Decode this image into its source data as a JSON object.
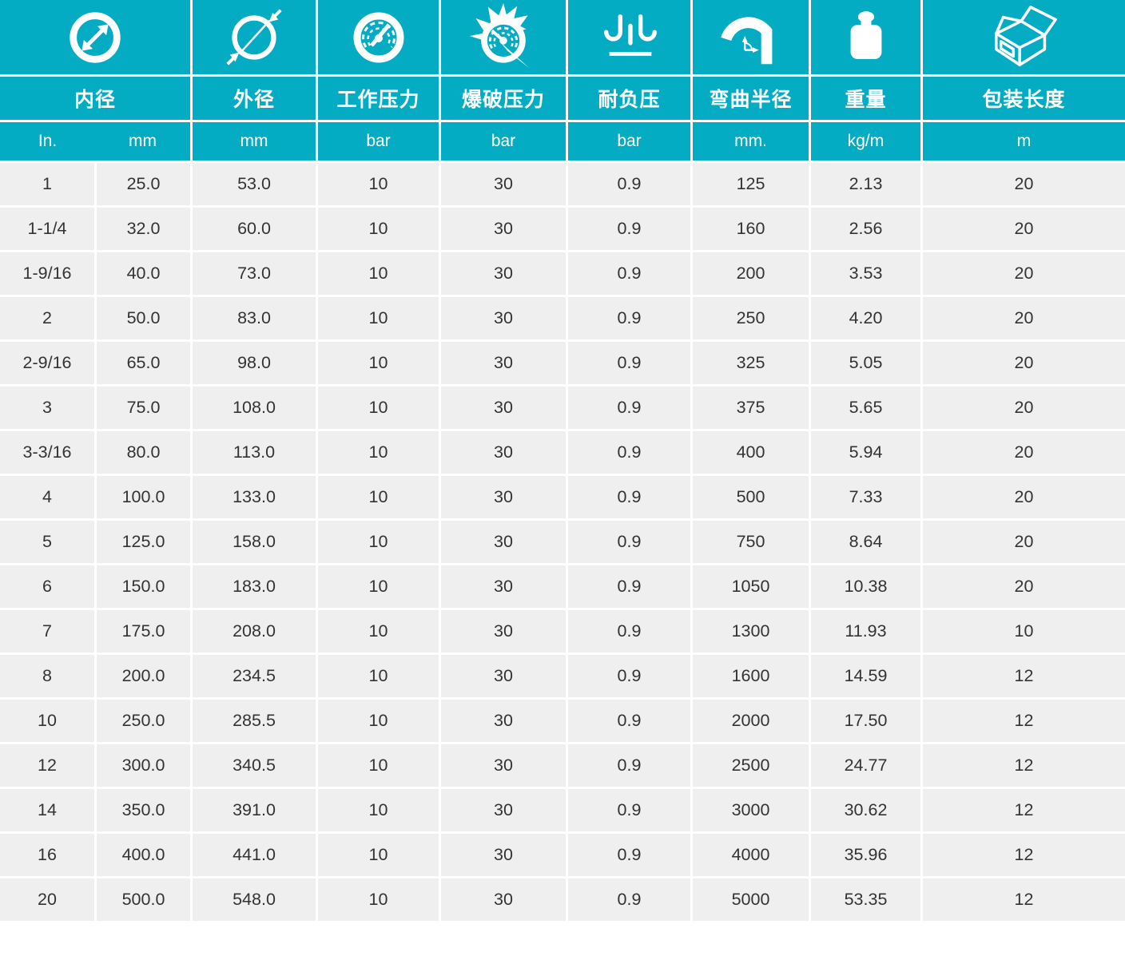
{
  "colors": {
    "accent": "#03ACC3",
    "row_background": "#EFEFEF",
    "text": "#333333",
    "header_text": "#FFFFFF"
  },
  "table": {
    "columns": [
      {
        "id": "inner_diameter",
        "label": "内径",
        "icon": "inner-diameter-icon",
        "units": [
          "In.",
          "mm"
        ]
      },
      {
        "id": "outer_diameter",
        "label": "外径",
        "icon": "outer-diameter-icon",
        "unit": "mm"
      },
      {
        "id": "working_pressure",
        "label": "工作压力",
        "icon": "pressure-gauge-icon",
        "unit": "bar"
      },
      {
        "id": "burst_pressure",
        "label": "爆破压力",
        "icon": "burst-gauge-icon",
        "unit": "bar"
      },
      {
        "id": "vacuum_resistance",
        "label": "耐负压",
        "icon": "vacuum-suction-icon",
        "unit": "bar"
      },
      {
        "id": "bend_radius",
        "label": "弯曲半径",
        "icon": "bend-radius-icon",
        "unit": "mm."
      },
      {
        "id": "weight",
        "label": "重量",
        "icon": "weight-icon",
        "unit": "kg/m"
      },
      {
        "id": "packing_length",
        "label": "包装长度",
        "icon": "package-box-icon",
        "unit": "m"
      }
    ],
    "rows": [
      [
        "1",
        "25.0",
        "53.0",
        "10",
        "30",
        "0.9",
        "125",
        "2.13",
        "20"
      ],
      [
        "1-1/4",
        "32.0",
        "60.0",
        "10",
        "30",
        "0.9",
        "160",
        "2.56",
        "20"
      ],
      [
        "1-9/16",
        "40.0",
        "73.0",
        "10",
        "30",
        "0.9",
        "200",
        "3.53",
        "20"
      ],
      [
        "2",
        "50.0",
        "83.0",
        "10",
        "30",
        "0.9",
        "250",
        "4.20",
        "20"
      ],
      [
        "2-9/16",
        "65.0",
        "98.0",
        "10",
        "30",
        "0.9",
        "325",
        "5.05",
        "20"
      ],
      [
        "3",
        "75.0",
        "108.0",
        "10",
        "30",
        "0.9",
        "375",
        "5.65",
        "20"
      ],
      [
        "3-3/16",
        "80.0",
        "113.0",
        "10",
        "30",
        "0.9",
        "400",
        "5.94",
        "20"
      ],
      [
        "4",
        "100.0",
        "133.0",
        "10",
        "30",
        "0.9",
        "500",
        "7.33",
        "20"
      ],
      [
        "5",
        "125.0",
        "158.0",
        "10",
        "30",
        "0.9",
        "750",
        "8.64",
        "20"
      ],
      [
        "6",
        "150.0",
        "183.0",
        "10",
        "30",
        "0.9",
        "1050",
        "10.38",
        "20"
      ],
      [
        "7",
        "175.0",
        "208.0",
        "10",
        "30",
        "0.9",
        "1300",
        "11.93",
        "10"
      ],
      [
        "8",
        "200.0",
        "234.5",
        "10",
        "30",
        "0.9",
        "1600",
        "14.59",
        "12"
      ],
      [
        "10",
        "250.0",
        "285.5",
        "10",
        "30",
        "0.9",
        "2000",
        "17.50",
        "12"
      ],
      [
        "12",
        "300.0",
        "340.5",
        "10",
        "30",
        "0.9",
        "2500",
        "24.77",
        "12"
      ],
      [
        "14",
        "350.0",
        "391.0",
        "10",
        "30",
        "0.9",
        "3000",
        "30.62",
        "12"
      ],
      [
        "16",
        "400.0",
        "441.0",
        "10",
        "30",
        "0.9",
        "4000",
        "35.96",
        "12"
      ],
      [
        "20",
        "500.0",
        "548.0",
        "10",
        "30",
        "0.9",
        "5000",
        "53.35",
        "12"
      ]
    ]
  }
}
